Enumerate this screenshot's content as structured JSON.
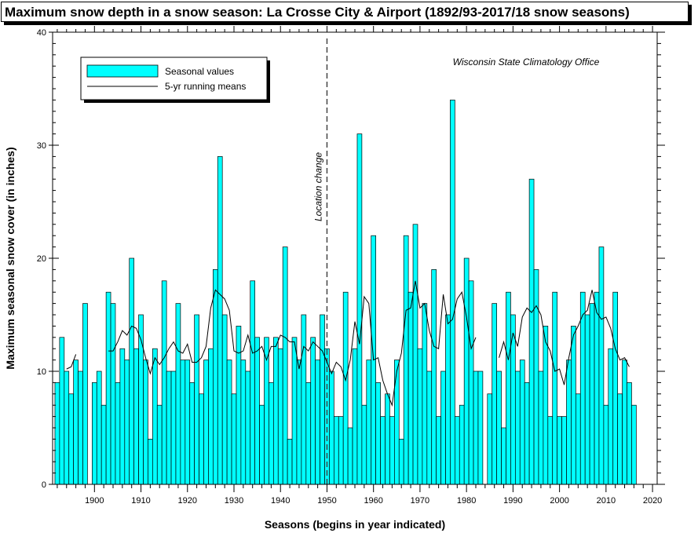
{
  "chart_data": {
    "type": "bar",
    "title": "Maximum snow depth in a snow season: La Crosse City & Airport (1892/93-2017/18 snow seasons)",
    "xlabel": "Seasons (begins in year indicated)",
    "ylabel": "Maximum seasonal snow cover (in inches)",
    "xlim": [
      1891,
      2021
    ],
    "ylim": [
      0,
      40
    ],
    "x_ticks": [
      1900,
      1910,
      1920,
      1930,
      1940,
      1950,
      1960,
      1970,
      1980,
      1990,
      2000,
      2010,
      2020
    ],
    "y_ticks": [
      0,
      10,
      20,
      30,
      40
    ],
    "bar_color": "#00FFFF",
    "line_color": "#000000",
    "legend": {
      "placement": "top-left",
      "entries": [
        "Seasonal values",
        "5-yr running means"
      ]
    },
    "annotations": {
      "source": "Wisconsin State Climatology Office",
      "location_change_label": "Location change",
      "location_change_year": 1950
    },
    "x": [
      1892,
      1893,
      1894,
      1895,
      1896,
      1897,
      1898,
      1899,
      1900,
      1901,
      1902,
      1903,
      1904,
      1905,
      1906,
      1907,
      1908,
      1909,
      1910,
      1911,
      1912,
      1913,
      1914,
      1915,
      1916,
      1917,
      1918,
      1919,
      1920,
      1921,
      1922,
      1923,
      1924,
      1925,
      1926,
      1927,
      1928,
      1929,
      1930,
      1931,
      1932,
      1933,
      1934,
      1935,
      1936,
      1937,
      1938,
      1939,
      1940,
      1941,
      1942,
      1943,
      1944,
      1945,
      1946,
      1947,
      1948,
      1949,
      1950,
      1951,
      1952,
      1953,
      1954,
      1955,
      1956,
      1957,
      1958,
      1959,
      1960,
      1961,
      1962,
      1963,
      1964,
      1965,
      1966,
      1967,
      1968,
      1969,
      1970,
      1971,
      1972,
      1973,
      1974,
      1975,
      1976,
      1977,
      1978,
      1979,
      1980,
      1981,
      1982,
      1983,
      1984,
      1985,
      1986,
      1987,
      1988,
      1989,
      1990,
      1991,
      1992,
      1993,
      1994,
      1995,
      1996,
      1997,
      1998,
      1999,
      2000,
      2001,
      2002,
      2003,
      2004,
      2005,
      2006,
      2007,
      2008,
      2009,
      2010,
      2011,
      2012,
      2013,
      2014,
      2015,
      2016,
      2017
    ],
    "series": [
      {
        "name": "Seasonal values",
        "values": [
          9,
          13,
          10,
          8,
          11,
          10,
          16,
          null,
          9,
          10,
          7,
          17,
          16,
          9,
          12,
          11,
          20,
          12,
          15,
          11,
          4,
          12,
          7,
          18,
          10,
          10,
          16,
          11,
          11,
          9,
          15,
          8,
          11,
          12,
          19,
          29,
          15,
          11,
          8,
          14,
          11,
          10,
          18,
          13,
          7,
          13,
          9,
          13,
          12,
          21,
          4,
          13,
          11,
          15,
          9,
          13,
          11,
          15,
          12,
          10,
          6,
          6,
          17,
          5,
          12,
          31,
          7,
          11,
          22,
          9,
          6,
          8,
          6,
          11,
          4,
          22,
          17,
          23,
          12,
          16,
          10,
          19,
          6,
          10,
          15,
          34,
          6,
          7,
          20,
          18,
          10,
          10,
          null,
          8,
          16,
          10,
          5,
          17,
          15,
          10,
          11,
          9,
          27,
          19,
          10,
          14,
          6,
          17,
          6,
          6,
          11,
          14,
          8,
          17,
          15,
          16,
          17,
          21,
          7,
          12,
          17,
          8,
          11,
          9,
          7,
          null
        ]
      },
      {
        "name": "5-yr running means",
        "values": [
          null,
          null,
          10.2,
          10.4,
          11.5,
          null,
          null,
          null,
          null,
          null,
          null,
          11.8,
          11.8,
          12.6,
          13.6,
          13.2,
          14,
          13.8,
          12.8,
          11.2,
          9.8,
          11.2,
          10.6,
          11.2,
          12,
          12.6,
          11.8,
          11.6,
          12.4,
          10.8,
          10.8,
          11.2,
          12.2,
          15.6,
          17.2,
          16.8,
          16.4,
          15.4,
          11.8,
          11.6,
          11.8,
          13.2,
          11.6,
          11.8,
          12.2,
          11,
          12.2,
          12.2,
          13.2,
          13,
          12.6,
          12.6,
          10.2,
          12.2,
          11.8,
          12.6,
          12.2,
          11.8,
          10.8,
          9.8,
          10.8,
          10.4,
          9.2,
          11,
          14.4,
          12.4,
          16.6,
          16,
          11,
          11.2,
          9.2,
          8,
          7,
          10,
          11.6,
          15.4,
          15.6,
          18,
          15.6,
          16,
          13.6,
          12.2,
          12,
          16.8,
          14.2,
          14.6,
          16.4,
          17,
          14.8,
          12,
          13,
          null,
          null,
          null,
          null,
          11.2,
          12.6,
          11,
          13.4,
          12.2,
          14.8,
          15.6,
          15.2,
          15.8,
          15,
          12.6,
          11.8,
          10,
          10.2,
          8.8,
          11.2,
          13.2,
          14,
          15,
          15.4,
          17.2,
          15.2,
          14.6,
          14.8,
          13.8,
          12,
          11,
          11.2,
          10.4,
          null,
          null
        ]
      }
    ]
  }
}
